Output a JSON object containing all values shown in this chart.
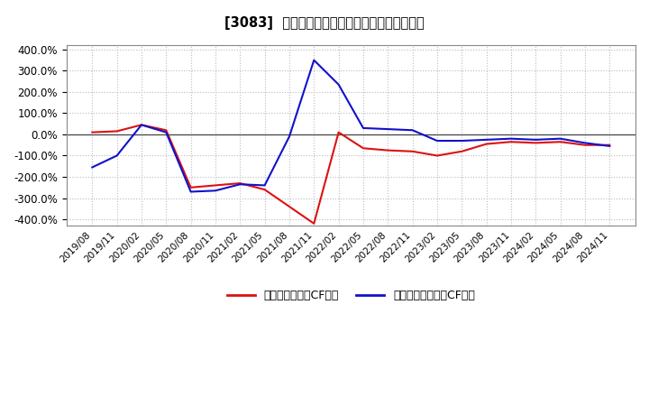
{
  "title": "[3083]  有利子負債キャッシュフロー比率の推移",
  "legend_red": "有利子負債営業CF比率",
  "legend_blue": "有利子負債フリーCF比率",
  "ylim": [
    -430,
    420
  ],
  "yticks": [
    -400,
    -300,
    -200,
    -100,
    0,
    100,
    200,
    300,
    400
  ],
  "background_color": "#ffffff",
  "plot_bg_color": "#ffffff",
  "grid_color": "#bbbbbb",
  "red_color": "#dd1111",
  "blue_color": "#1111cc",
  "x_labels": [
    "2019/08",
    "2019/11",
    "2020/02",
    "2020/05",
    "2020/08",
    "2020/11",
    "2021/02",
    "2021/05",
    "2021/08",
    "2021/11",
    "2022/02",
    "2022/05",
    "2022/08",
    "2022/11",
    "2023/02",
    "2023/05",
    "2023/08",
    "2023/11",
    "2024/02",
    "2024/05",
    "2024/08",
    "2024/11"
  ],
  "red_values": [
    10,
    15,
    45,
    20,
    -250,
    -240,
    -230,
    -260,
    -340,
    -420,
    10,
    -65,
    -75,
    -80,
    -100,
    -80,
    -45,
    -35,
    -40,
    -35,
    -50,
    -50
  ],
  "blue_values": [
    -155,
    -100,
    45,
    10,
    -270,
    -265,
    -235,
    -240,
    -10,
    350,
    235,
    30,
    25,
    20,
    -30,
    -30,
    -25,
    -20,
    -25,
    -20,
    -40,
    -55
  ]
}
